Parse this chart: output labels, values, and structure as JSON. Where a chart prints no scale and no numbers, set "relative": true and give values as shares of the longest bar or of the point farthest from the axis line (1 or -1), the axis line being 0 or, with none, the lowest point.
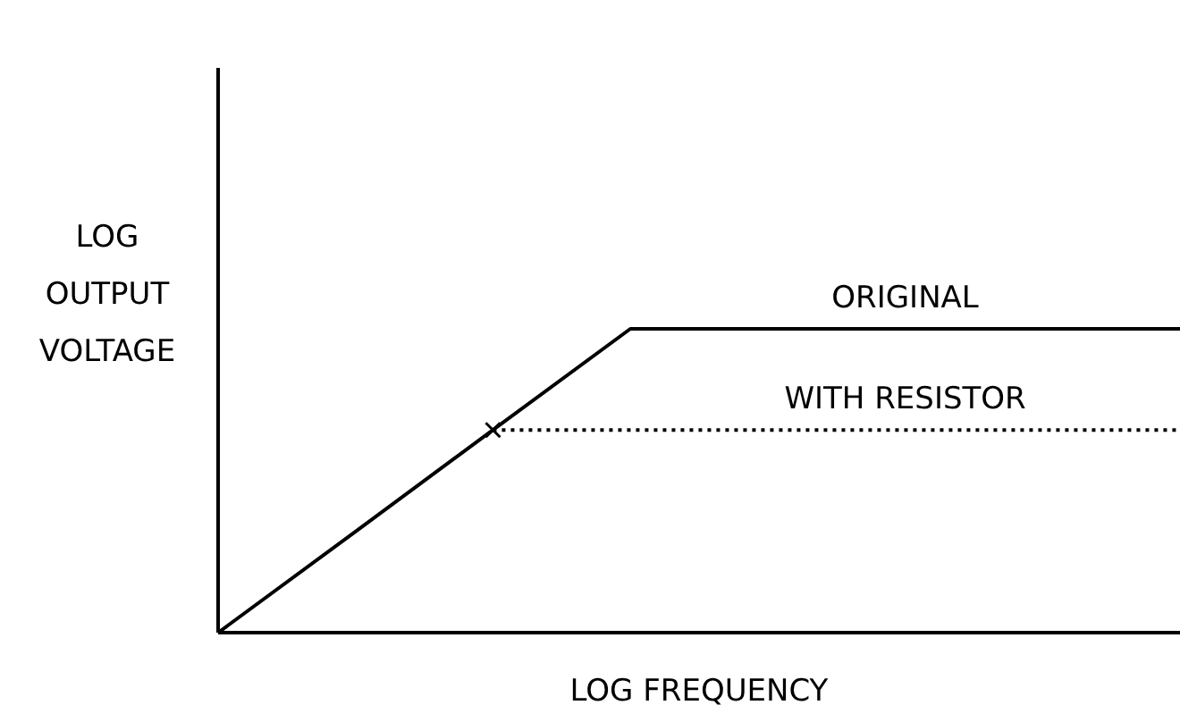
{
  "chart_data": {
    "type": "line",
    "relative": true,
    "xlabel": "LOG FREQUENCY",
    "ylabel": "LOG\nOUTPUT\nVOLTAGE",
    "categories": [
      null,
      null,
      null,
      null,
      null,
      null,
      null,
      null
    ],
    "series": [
      {
        "name": "ORIGINAL",
        "color": "#000000",
        "line_style": "solid",
        "values": [
          0,
          0.333,
          0.667,
          1,
          1,
          1,
          1,
          1
        ]
      },
      {
        "name": "WITH RESISTOR",
        "color": "#000000",
        "line_style": "dotted",
        "values": [
          null,
          null,
          0.667,
          0.667,
          0.667,
          0.667,
          0.667,
          0.667
        ]
      }
    ]
  }
}
